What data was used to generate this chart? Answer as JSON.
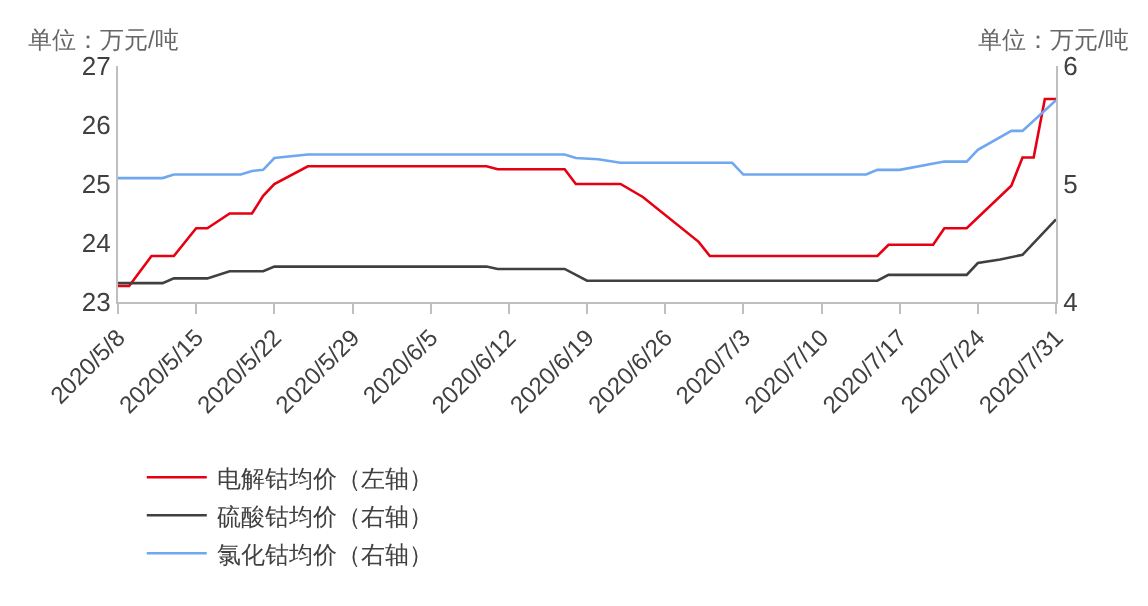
{
  "chart_data": {
    "type": "line",
    "ylabel": "单位：万元/吨",
    "y2label": "单位：万元/吨",
    "legend": "bottom",
    "line_style": "solid",
    "xlim": [
      "2020-05-08",
      "2020-07-31"
    ],
    "xticks": [
      {
        "value": "2020-05-08",
        "label": "2020/5/8"
      },
      {
        "value": "2020-05-15",
        "label": "2020/5/15"
      },
      {
        "value": "2020-05-22",
        "label": "2020/5/22"
      },
      {
        "value": "2020-05-29",
        "label": "2020/5/29"
      },
      {
        "value": "2020-06-05",
        "label": "2020/6/5"
      },
      {
        "value": "2020-06-12",
        "label": "2020/6/12"
      },
      {
        "value": "2020-06-19",
        "label": "2020/6/19"
      },
      {
        "value": "2020-06-26",
        "label": "2020/6/26"
      },
      {
        "value": "2020-07-03",
        "label": "2020/7/3"
      },
      {
        "value": "2020-07-10",
        "label": "2020/7/10"
      },
      {
        "value": "2020-07-17",
        "label": "2020/7/17"
      },
      {
        "value": "2020-07-24",
        "label": "2020/7/24"
      },
      {
        "value": "2020-07-31",
        "label": "2020/7/31"
      }
    ],
    "ylim": [
      23,
      27
    ],
    "yticks": [
      23,
      24,
      25,
      26,
      27
    ],
    "y2lim": [
      4,
      6
    ],
    "y2ticks": [
      4,
      5,
      6
    ],
    "series": [
      {
        "name": "电解钴均价（左轴）",
        "color": "#e60012",
        "x": [
          "2020-05-08",
          "2020-05-09",
          "2020-05-11",
          "2020-05-13",
          "2020-05-15",
          "2020-05-16",
          "2020-05-18",
          "2020-05-20",
          "2020-05-21",
          "2020-05-22",
          "2020-05-25",
          "2020-06-10",
          "2020-06-11",
          "2020-06-17",
          "2020-06-18",
          "2020-06-22",
          "2020-06-24",
          "2020-06-29",
          "2020-06-30",
          "2020-07-15",
          "2020-07-16",
          "2020-07-20",
          "2020-07-21",
          "2020-07-23",
          "2020-07-27",
          "2020-07-28",
          "2020-07-29",
          "2020-07-30",
          "2020-07-31"
        ],
        "values": [
          23.27,
          23.27,
          23.78,
          23.78,
          24.25,
          24.25,
          24.5,
          24.5,
          24.8,
          25.0,
          25.3,
          25.3,
          25.25,
          25.25,
          25.0,
          25.0,
          24.78,
          24.02,
          23.78,
          23.78,
          23.97,
          23.97,
          24.25,
          24.25,
          24.97,
          25.45,
          25.45,
          26.44,
          26.44
        ]
      },
      {
        "name": "硫酸钴均价（右轴）",
        "color": "#404040",
        "axis": "y2",
        "x": [
          "2020-05-08",
          "2020-05-12",
          "2020-05-13",
          "2020-05-16",
          "2020-05-18",
          "2020-05-21",
          "2020-05-22",
          "2020-06-10",
          "2020-06-11",
          "2020-06-17",
          "2020-06-19",
          "2020-07-15",
          "2020-07-16",
          "2020-07-23",
          "2020-07-24",
          "2020-07-26",
          "2020-07-28",
          "2020-07-31"
        ],
        "values": [
          4.16,
          4.16,
          4.2,
          4.2,
          4.26,
          4.26,
          4.3,
          4.3,
          4.28,
          4.28,
          4.18,
          4.18,
          4.23,
          4.23,
          4.33,
          4.36,
          4.4,
          4.7
        ]
      },
      {
        "name": "氯化钴均价（右轴）",
        "color": "#6fa8f0",
        "axis": "y2",
        "x": [
          "2020-05-08",
          "2020-05-12",
          "2020-05-13",
          "2020-05-19",
          "2020-05-20",
          "2020-05-21",
          "2020-05-22",
          "2020-05-25",
          "2020-06-17",
          "2020-06-18",
          "2020-06-20",
          "2020-06-22",
          "2020-07-02",
          "2020-07-03",
          "2020-07-14",
          "2020-07-15",
          "2020-07-17",
          "2020-07-21",
          "2020-07-23",
          "2020-07-24",
          "2020-07-27",
          "2020-07-28",
          "2020-07-31"
        ],
        "values": [
          5.05,
          5.05,
          5.08,
          5.08,
          5.11,
          5.12,
          5.22,
          5.25,
          5.25,
          5.22,
          5.21,
          5.18,
          5.18,
          5.08,
          5.08,
          5.12,
          5.12,
          5.19,
          5.19,
          5.29,
          5.45,
          5.45,
          5.71
        ]
      }
    ]
  }
}
